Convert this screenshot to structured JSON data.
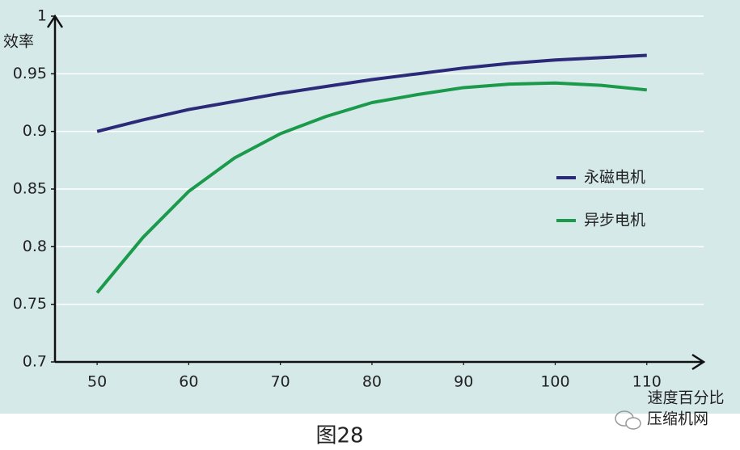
{
  "chart_data": {
    "type": "line",
    "y_label": "效率",
    "x_label": "速度百分比",
    "caption": "图28",
    "watermark": "压缩机网",
    "x": [
      50,
      55,
      60,
      65,
      70,
      75,
      80,
      85,
      90,
      95,
      100,
      105,
      110
    ],
    "series": [
      {
        "name": "永磁电机",
        "color": "#2b2a78",
        "values": [
          0.9,
          0.91,
          0.919,
          0.926,
          0.933,
          0.939,
          0.945,
          0.95,
          0.955,
          0.959,
          0.962,
          0.964,
          0.966
        ]
      },
      {
        "name": "异步电机",
        "color": "#1a9a4a",
        "values": [
          0.76,
          0.808,
          0.848,
          0.877,
          0.898,
          0.913,
          0.925,
          0.932,
          0.938,
          0.941,
          0.942,
          0.94,
          0.936
        ]
      }
    ],
    "xlim": [
      45.4,
      116.2
    ],
    "xticks": [
      50,
      60,
      70,
      80,
      90,
      100,
      110
    ],
    "ylim": [
      0.7,
      1
    ],
    "yticks": [
      0.7,
      0.75,
      0.8,
      0.85,
      0.9,
      0.95,
      1
    ],
    "grid": true,
    "legend": "right"
  }
}
